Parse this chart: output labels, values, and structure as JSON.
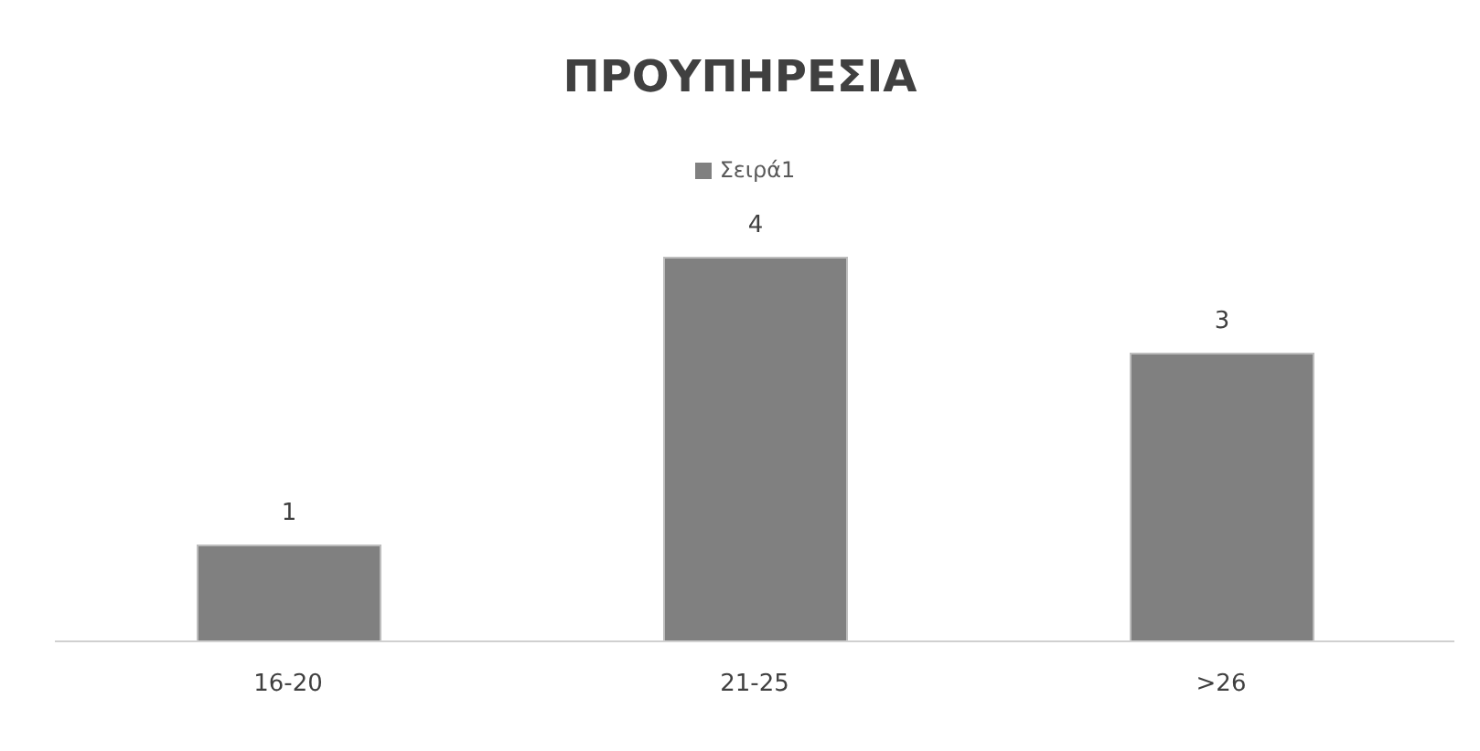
{
  "chart_data": {
    "type": "bar",
    "title": "ΠΡΟΥΠΗΡΕΣΙΑ",
    "categories": [
      "16-20",
      "21-25",
      ">26"
    ],
    "series": [
      {
        "name": "Σειρά1",
        "color": "#808080",
        "values": [
          1,
          4,
          3
        ]
      }
    ],
    "data_labels": true,
    "legend": "top",
    "grid": false,
    "tick_labels": "x"
  }
}
